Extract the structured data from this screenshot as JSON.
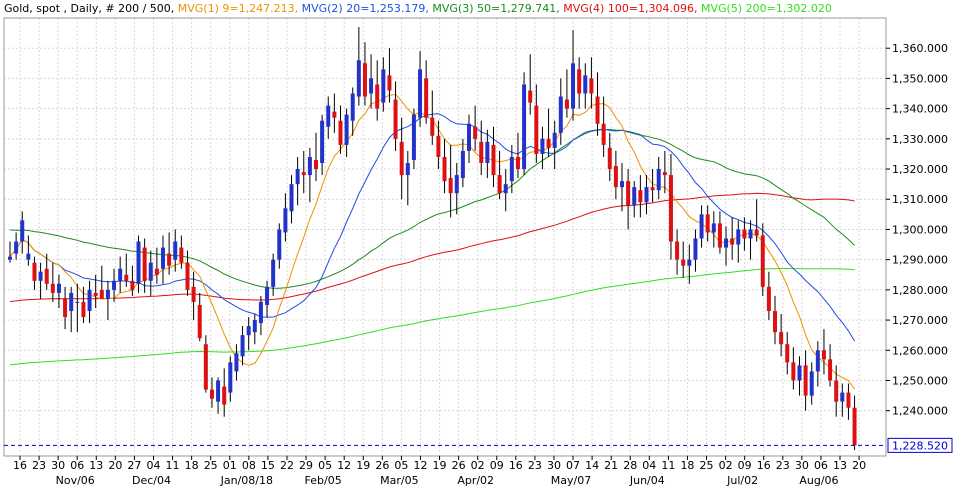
{
  "header": {
    "instrument": "Gold, spot , Daily, # 200 / 500,",
    "ma1": "MVG(1) 9=1,247.213,",
    "ma2": "MVG(2) 20=1,253.179,",
    "ma3": "MVG(3) 50=1,279.741,",
    "ma4": "MVG(4) 100=1,304.096,",
    "ma5": "MVG(5) 200=1,302.020"
  },
  "colors": {
    "ma1": "#f09000",
    "ma2": "#1f4fe0",
    "ma3": "#1a8c1a",
    "ma4": "#dd1111",
    "ma5": "#33dd22",
    "up": "#2233cc",
    "down": "#dd1111",
    "grid": "#d8d8d8",
    "last_price_line": "#0000cc"
  },
  "last_price": {
    "value": 1228.52,
    "label": "1,228.520"
  },
  "chart_data": {
    "type": "candlestick",
    "ylim": [
      1225,
      1370
    ],
    "y_ticks": [
      "1,240.000",
      "1,250.000",
      "1,260.000",
      "1,270.000",
      "1,280.000",
      "1,290.000",
      "1,300.000",
      "1,310.000",
      "1,320.000",
      "1,330.000",
      "1,340.000",
      "1,350.000",
      "1,360.000"
    ],
    "y_tick_values": [
      1240,
      1250,
      1260,
      1270,
      1280,
      1290,
      1300,
      1310,
      1320,
      1330,
      1340,
      1350,
      1360
    ],
    "x_ticks": [
      "16",
      "23",
      "30",
      "06",
      "13",
      "20",
      "27",
      "04",
      "11",
      "18",
      "25",
      "01",
      "08",
      "15",
      "22",
      "29",
      "05",
      "12",
      "19",
      "26",
      "05",
      "12",
      "19",
      "26",
      "02",
      "09",
      "16",
      "23",
      "30",
      "07",
      "14",
      "21",
      "28",
      "04",
      "11",
      "18",
      "25",
      "02",
      "09",
      "16",
      "23",
      "30",
      "06",
      "13",
      "20"
    ],
    "x_months": [
      "Nov/06",
      "Dec/04",
      "Jan/08/18",
      "Feb/05",
      "Mar/05",
      "Apr/02",
      "May/07",
      "Jun/04",
      "Jul/02",
      "Aug/06"
    ],
    "x_months_tick_index": [
      3,
      7,
      12,
      16,
      20,
      24,
      29,
      33,
      38,
      42
    ],
    "candles": [
      [
        1290,
        1296,
        1289,
        1291
      ],
      [
        1292,
        1299,
        1290,
        1296
      ],
      [
        1296,
        1306,
        1292,
        1303
      ],
      [
        1290,
        1298,
        1288,
        1292
      ],
      [
        1289,
        1291,
        1280,
        1283
      ],
      [
        1283,
        1289,
        1277,
        1286
      ],
      [
        1287,
        1292,
        1280,
        1282
      ],
      [
        1282,
        1289,
        1276,
        1279
      ],
      [
        1279,
        1285,
        1274,
        1282
      ],
      [
        1277,
        1281,
        1267,
        1271
      ],
      [
        1273,
        1281,
        1266,
        1279
      ],
      [
        1276,
        1282,
        1266,
        1276
      ],
      [
        1276,
        1281,
        1269,
        1271
      ],
      [
        1273,
        1283,
        1269,
        1280
      ],
      [
        1279,
        1285,
        1274,
        1278
      ],
      [
        1280,
        1288,
        1278,
        1277
      ],
      [
        1277,
        1283,
        1270,
        1280
      ],
      [
        1280,
        1287,
        1276,
        1283
      ],
      [
        1283,
        1291,
        1279,
        1287
      ],
      [
        1285,
        1292,
        1281,
        1283
      ],
      [
        1283,
        1288,
        1278,
        1280
      ],
      [
        1282,
        1298,
        1279,
        1296
      ],
      [
        1294,
        1297,
        1279,
        1283
      ],
      [
        1283,
        1293,
        1278,
        1289
      ],
      [
        1287,
        1294,
        1282,
        1285
      ],
      [
        1287,
        1298,
        1282,
        1294
      ],
      [
        1292,
        1299,
        1285,
        1288
      ],
      [
        1290,
        1300,
        1286,
        1296
      ],
      [
        1294,
        1298,
        1287,
        1289
      ],
      [
        1289,
        1293,
        1278,
        1280
      ],
      [
        1281,
        1286,
        1270,
        1276
      ],
      [
        1275,
        1279,
        1263,
        1264
      ],
      [
        1262,
        1265,
        1246,
        1247
      ],
      [
        1247,
        1251,
        1241,
        1244
      ],
      [
        1243,
        1251,
        1239,
        1250
      ],
      [
        1248,
        1254,
        1238,
        1242
      ],
      [
        1246,
        1258,
        1243,
        1256
      ],
      [
        1253,
        1262,
        1250,
        1259
      ],
      [
        1258,
        1268,
        1255,
        1265
      ],
      [
        1265,
        1271,
        1260,
        1268
      ],
      [
        1266,
        1272,
        1262,
        1270
      ],
      [
        1269,
        1278,
        1265,
        1276
      ],
      [
        1275,
        1283,
        1271,
        1281
      ],
      [
        1281,
        1292,
        1278,
        1290
      ],
      [
        1290,
        1302,
        1287,
        1300
      ],
      [
        1299,
        1312,
        1296,
        1307
      ],
      [
        1306,
        1318,
        1302,
        1315
      ],
      [
        1315,
        1324,
        1308,
        1320
      ],
      [
        1319,
        1326,
        1312,
        1318
      ],
      [
        1318,
        1327,
        1309,
        1324
      ],
      [
        1323,
        1332,
        1316,
        1320
      ],
      [
        1322,
        1338,
        1318,
        1336
      ],
      [
        1334,
        1344,
        1330,
        1341
      ],
      [
        1339,
        1345,
        1332,
        1337
      ],
      [
        1336,
        1341,
        1325,
        1328
      ],
      [
        1328,
        1340,
        1324,
        1338
      ],
      [
        1336,
        1347,
        1331,
        1345
      ],
      [
        1344,
        1367,
        1341,
        1356
      ],
      [
        1355,
        1362,
        1341,
        1344
      ],
      [
        1345,
        1358,
        1340,
        1350
      ],
      [
        1348,
        1356,
        1336,
        1340
      ],
      [
        1342,
        1357,
        1339,
        1353
      ],
      [
        1351,
        1360,
        1342,
        1346
      ],
      [
        1343,
        1349,
        1326,
        1330
      ],
      [
        1329,
        1337,
        1310,
        1318
      ],
      [
        1318,
        1326,
        1308,
        1322
      ],
      [
        1323,
        1340,
        1320,
        1338
      ],
      [
        1337,
        1359,
        1334,
        1353
      ],
      [
        1350,
        1356,
        1335,
        1337
      ],
      [
        1337,
        1346,
        1328,
        1331
      ],
      [
        1331,
        1336,
        1320,
        1324
      ],
      [
        1324,
        1330,
        1312,
        1316
      ],
      [
        1317,
        1328,
        1304,
        1312
      ],
      [
        1312,
        1322,
        1305,
        1318
      ],
      [
        1317,
        1330,
        1314,
        1326
      ],
      [
        1326,
        1338,
        1322,
        1335
      ],
      [
        1334,
        1341,
        1326,
        1330
      ],
      [
        1329,
        1336,
        1318,
        1322
      ],
      [
        1322,
        1333,
        1317,
        1329
      ],
      [
        1328,
        1334,
        1314,
        1318
      ],
      [
        1318,
        1326,
        1310,
        1312
      ],
      [
        1312,
        1320,
        1306,
        1315
      ],
      [
        1316,
        1328,
        1312,
        1324
      ],
      [
        1324,
        1332,
        1317,
        1320
      ],
      [
        1320,
        1352,
        1318,
        1348
      ],
      [
        1346,
        1358,
        1338,
        1342
      ],
      [
        1341,
        1348,
        1322,
        1325
      ],
      [
        1325,
        1334,
        1320,
        1330
      ],
      [
        1330,
        1340,
        1324,
        1327
      ],
      [
        1327,
        1336,
        1320,
        1332
      ],
      [
        1332,
        1350,
        1328,
        1344
      ],
      [
        1343,
        1353,
        1337,
        1340
      ],
      [
        1340,
        1366,
        1336,
        1355
      ],
      [
        1353,
        1357,
        1340,
        1345
      ],
      [
        1345,
        1355,
        1340,
        1351
      ],
      [
        1350,
        1357,
        1340,
        1345
      ],
      [
        1344,
        1352,
        1331,
        1335
      ],
      [
        1335,
        1344,
        1324,
        1328
      ],
      [
        1327,
        1332,
        1316,
        1320
      ],
      [
        1321,
        1326,
        1310,
        1314
      ],
      [
        1314,
        1322,
        1306,
        1316
      ],
      [
        1316,
        1320,
        1300,
        1308
      ],
      [
        1308,
        1316,
        1304,
        1314
      ],
      [
        1313,
        1318,
        1304,
        1309
      ],
      [
        1309,
        1318,
        1305,
        1314
      ],
      [
        1314,
        1320,
        1309,
        1313
      ],
      [
        1313,
        1324,
        1310,
        1320
      ],
      [
        1319,
        1326,
        1312,
        1318
      ],
      [
        1318,
        1325,
        1290,
        1296
      ],
      [
        1296,
        1300,
        1285,
        1290
      ],
      [
        1290,
        1296,
        1284,
        1288
      ],
      [
        1288,
        1295,
        1282,
        1290
      ],
      [
        1290,
        1300,
        1286,
        1297
      ],
      [
        1297,
        1308,
        1294,
        1305
      ],
      [
        1305,
        1308,
        1296,
        1299
      ],
      [
        1299,
        1306,
        1294,
        1302
      ],
      [
        1302,
        1306,
        1292,
        1294
      ],
      [
        1294,
        1301,
        1288,
        1297
      ],
      [
        1297,
        1304,
        1290,
        1295
      ],
      [
        1295,
        1303,
        1289,
        1300
      ],
      [
        1300,
        1304,
        1293,
        1297
      ],
      [
        1297,
        1303,
        1290,
        1300
      ],
      [
        1300,
        1310,
        1296,
        1298
      ],
      [
        1298,
        1302,
        1278,
        1281
      ],
      [
        1281,
        1286,
        1270,
        1273
      ],
      [
        1273,
        1278,
        1262,
        1266
      ],
      [
        1266,
        1272,
        1258,
        1262
      ],
      [
        1262,
        1266,
        1252,
        1256
      ],
      [
        1256,
        1261,
        1247,
        1250
      ],
      [
        1250,
        1258,
        1245,
        1255
      ],
      [
        1255,
        1260,
        1240,
        1245
      ],
      [
        1245,
        1256,
        1242,
        1253
      ],
      [
        1253,
        1263,
        1248,
        1260
      ],
      [
        1260,
        1267,
        1252,
        1257
      ],
      [
        1257,
        1262,
        1248,
        1250
      ],
      [
        1250,
        1255,
        1238,
        1243
      ],
      [
        1243,
        1249,
        1238,
        1246
      ],
      [
        1246,
        1249,
        1237,
        1241
      ],
      [
        1241,
        1245,
        1227,
        1228.52
      ]
    ]
  }
}
